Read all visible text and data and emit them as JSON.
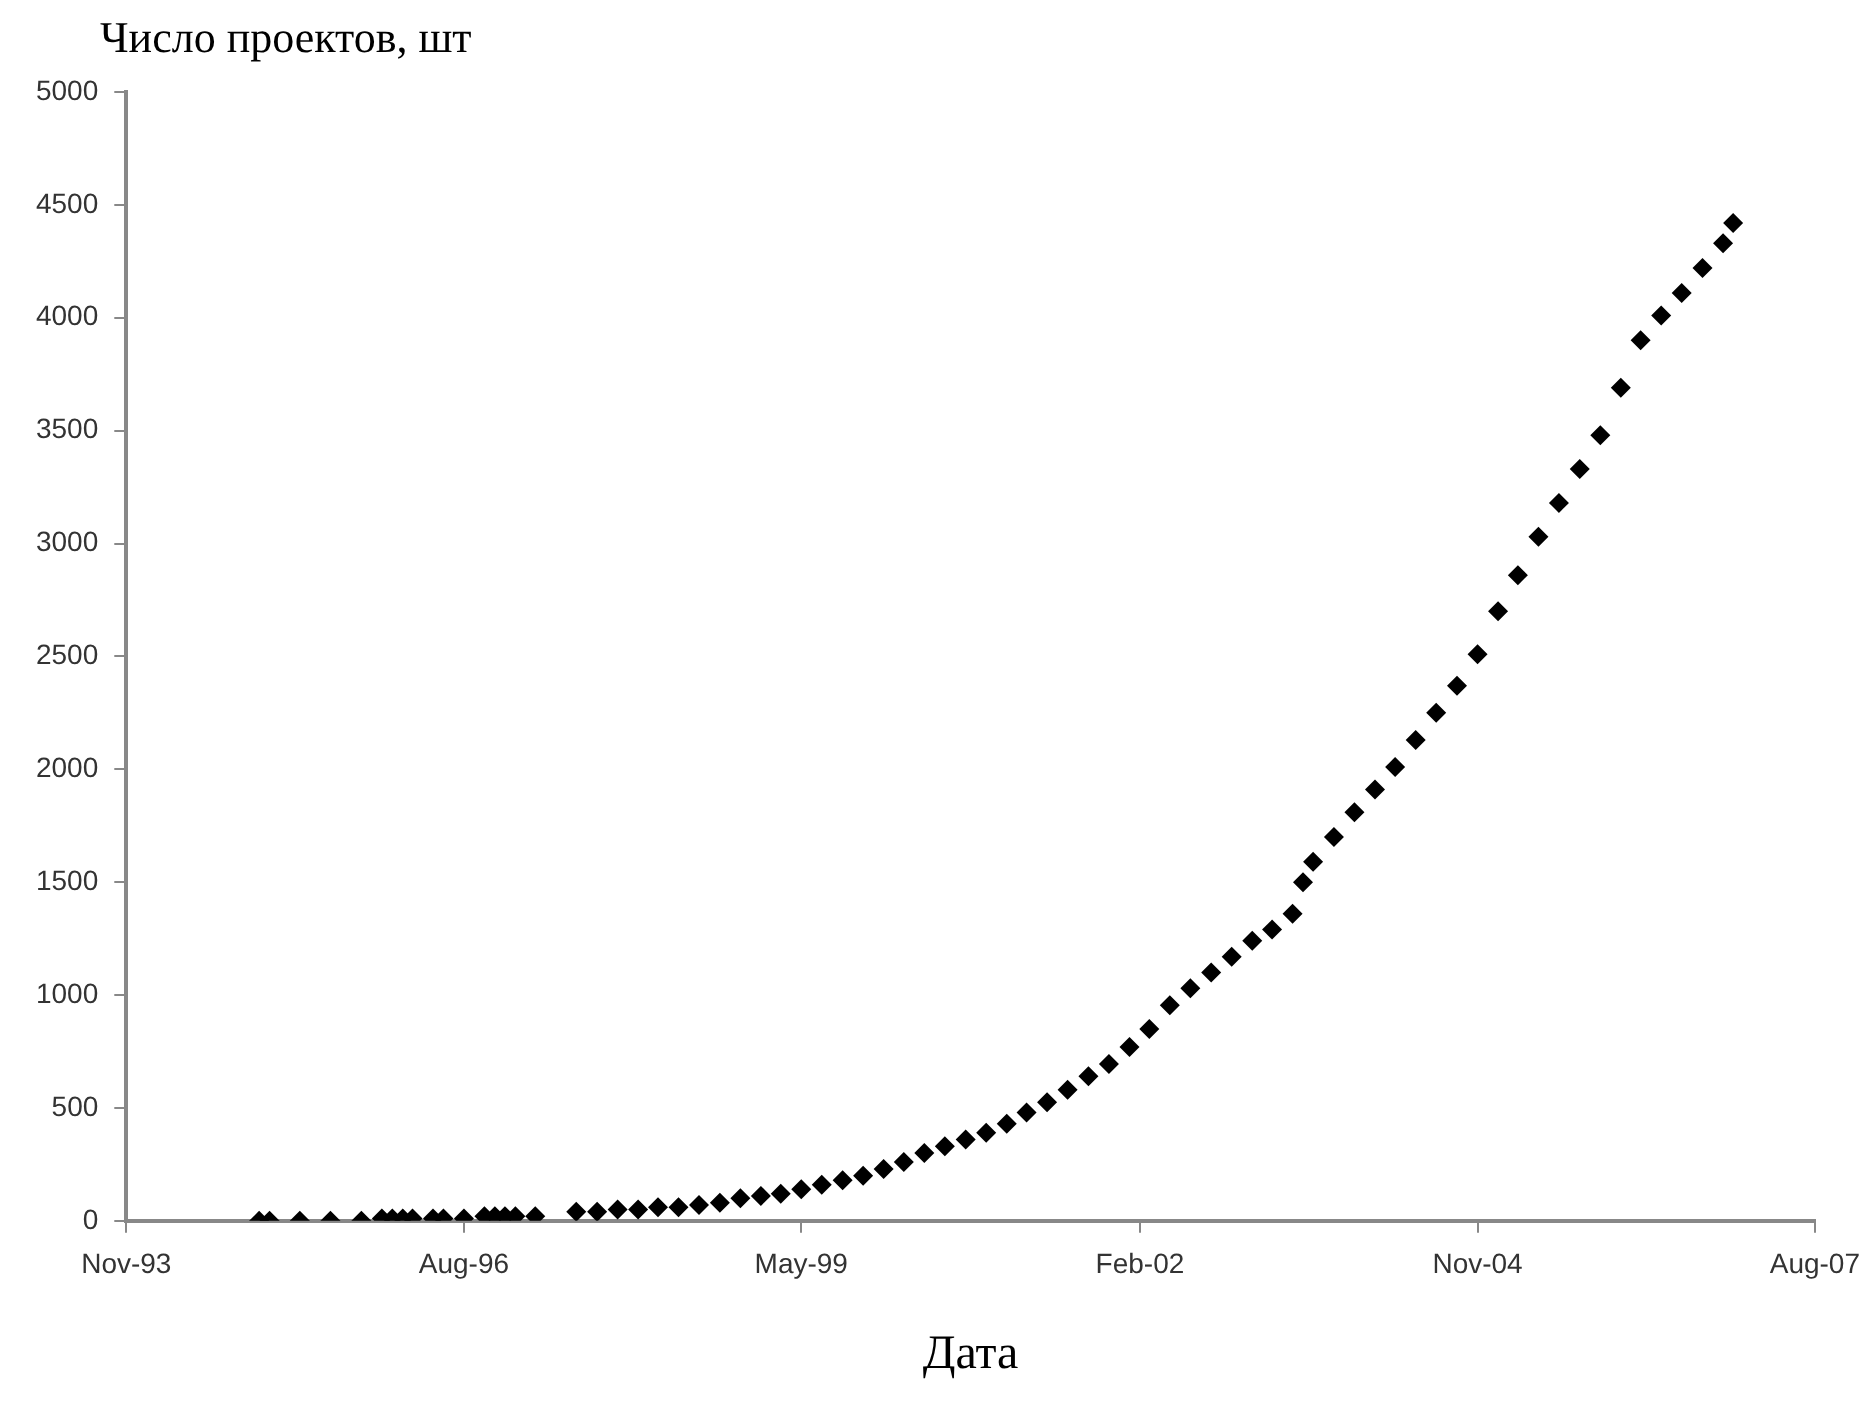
{
  "chart_data": {
    "type": "scatter",
    "xlabel": "Дата",
    "ylabel": "Число проектов, шт",
    "x": [
      "1994-12",
      "1995-01",
      "1995-04",
      "1995-07",
      "1995-10",
      "1995-12",
      "1996-01",
      "1996-02",
      "1996-03",
      "1996-05",
      "1996-06",
      "1996-08",
      "1996-10",
      "1996-11",
      "1996-12",
      "1997-01",
      "1997-03",
      "1997-07",
      "1997-09",
      "1997-11",
      "1998-01",
      "1998-03",
      "1998-05",
      "1998-07",
      "1998-09",
      "1998-11",
      "1999-01",
      "1999-03",
      "1999-05",
      "1999-07",
      "1999-09",
      "1999-11",
      "2000-01",
      "2000-03",
      "2000-05",
      "2000-07",
      "2000-09",
      "2000-11",
      "2001-01",
      "2001-03",
      "2001-05",
      "2001-07",
      "2001-09",
      "2001-11",
      "2002-01",
      "2002-03",
      "2002-05",
      "2002-07",
      "2002-09",
      "2002-11",
      "2003-01",
      "2003-03",
      "2003-05",
      "2003-06",
      "2003-07",
      "2003-09",
      "2003-11",
      "2004-01",
      "2004-03",
      "2004-05",
      "2004-07",
      "2004-09",
      "2004-11",
      "2005-01",
      "2005-03",
      "2005-05",
      "2005-07",
      "2005-09",
      "2005-11",
      "2006-01",
      "2006-03",
      "2006-05",
      "2006-07",
      "2006-09",
      "2006-11",
      "2006-12"
    ],
    "series": [
      {
        "color": "#000000",
        "values": [
          0,
          0,
          0,
          0,
          0,
          10,
          10,
          10,
          10,
          10,
          10,
          10,
          20,
          20,
          20,
          20,
          20,
          40,
          40,
          50,
          50,
          60,
          60,
          70,
          80,
          100,
          110,
          120,
          140,
          160,
          180,
          200,
          230,
          260,
          300,
          330,
          360,
          390,
          430,
          480,
          525,
          580,
          640,
          695,
          770,
          850,
          955,
          1030,
          1100,
          1170,
          1240,
          1290,
          1360,
          1500,
          1590,
          1700,
          1810,
          1910,
          2010,
          2130,
          2250,
          2370,
          2510,
          2700,
          2860,
          3030,
          3180,
          3330,
          3480,
          3690,
          3900,
          4010,
          4110,
          4220,
          4330,
          4420
        ]
      }
    ],
    "xlim": [
      "1993-11",
      "2007-08"
    ],
    "xticks": [
      {
        "value": "1993-11",
        "label": "Nov-93"
      },
      {
        "value": "1996-08",
        "label": "Aug-96"
      },
      {
        "value": "1999-05",
        "label": "May-99"
      },
      {
        "value": "2002-02",
        "label": "Feb-02"
      },
      {
        "value": "2004-11",
        "label": "Nov-04"
      },
      {
        "value": "2007-08",
        "label": "Aug-07"
      }
    ],
    "ylim": [
      0,
      5000
    ],
    "yticks": [
      0,
      500,
      1000,
      1500,
      2000,
      2500,
      3000,
      3500,
      4000,
      4500,
      5000
    ],
    "grid": false,
    "legend": false,
    "marker": "diamond"
  }
}
